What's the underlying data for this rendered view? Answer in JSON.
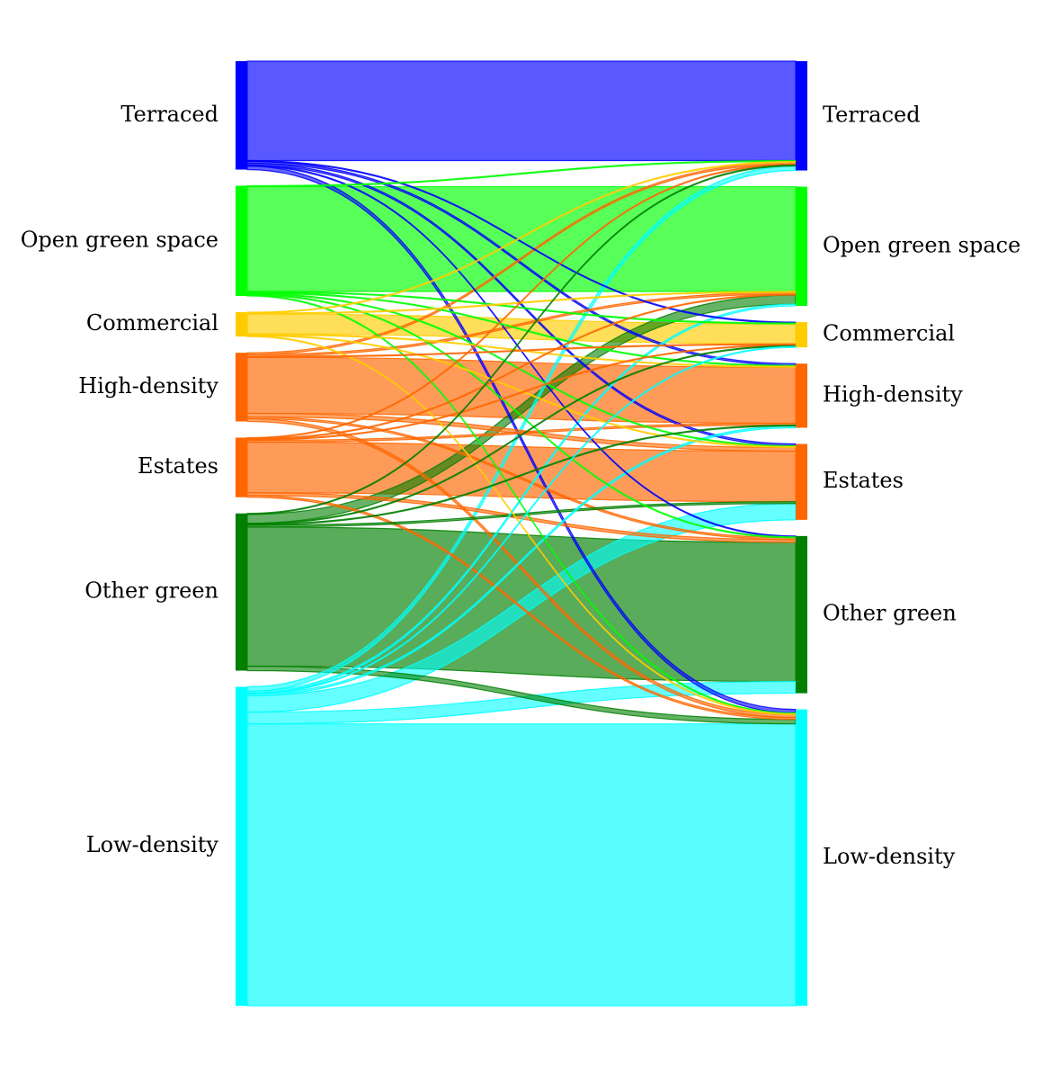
{
  "chart_data": {
    "type": "sankey",
    "categories": [
      "Terraced",
      "Open green space",
      "Commercial",
      "High-density",
      "Estates",
      "Other green",
      "Low-density"
    ],
    "colors": {
      "Terraced": "#0000ff",
      "Open green space": "#00ff00",
      "Commercial": "#ffcc00",
      "High-density": "#ff6600",
      "Estates": "#ff6600",
      "Other green": "#007f00",
      "Low-density": "#00ffff"
    },
    "flows": [
      {
        "from": "Terraced",
        "to": "Terraced",
        "value": 110
      },
      {
        "from": "Terraced",
        "to": "Commercial",
        "value": 1
      },
      {
        "from": "Terraced",
        "to": "High-density",
        "value": 2
      },
      {
        "from": "Terraced",
        "to": "Estates",
        "value": 2
      },
      {
        "from": "Terraced",
        "to": "Other green",
        "value": 1
      },
      {
        "from": "Terraced",
        "to": "Low-density",
        "value": 4
      },
      {
        "from": "Open green space",
        "to": "Terraced",
        "value": 1
      },
      {
        "from": "Open green space",
        "to": "Open green space",
        "value": 116
      },
      {
        "from": "Open green space",
        "to": "Commercial",
        "value": 1
      },
      {
        "from": "Open green space",
        "to": "High-density",
        "value": 1
      },
      {
        "from": "Open green space",
        "to": "Estates",
        "value": 1
      },
      {
        "from": "Open green space",
        "to": "Other green",
        "value": 1
      },
      {
        "from": "Open green space",
        "to": "Low-density",
        "value": 1
      },
      {
        "from": "Commercial",
        "to": "Terraced",
        "value": 1
      },
      {
        "from": "Commercial",
        "to": "Open green space",
        "value": 1
      },
      {
        "from": "Commercial",
        "to": "Commercial",
        "value": 22
      },
      {
        "from": "Commercial",
        "to": "High-density",
        "value": 1
      },
      {
        "from": "Commercial",
        "to": "Estates",
        "value": 1
      },
      {
        "from": "Commercial",
        "to": "Low-density",
        "value": 1
      },
      {
        "from": "High-density",
        "to": "Terraced",
        "value": 2
      },
      {
        "from": "High-density",
        "to": "Open green space",
        "value": 2
      },
      {
        "from": "High-density",
        "to": "Commercial",
        "value": 1
      },
      {
        "from": "High-density",
        "to": "High-density",
        "value": 62
      },
      {
        "from": "High-density",
        "to": "Estates",
        "value": 4
      },
      {
        "from": "High-density",
        "to": "Other green",
        "value": 2
      },
      {
        "from": "High-density",
        "to": "Low-density",
        "value": 3
      },
      {
        "from": "Estates",
        "to": "Terraced",
        "value": 1
      },
      {
        "from": "Estates",
        "to": "Open green space",
        "value": 1
      },
      {
        "from": "Estates",
        "to": "Commercial",
        "value": 1
      },
      {
        "from": "Estates",
        "to": "High-density",
        "value": 2
      },
      {
        "from": "Estates",
        "to": "Estates",
        "value": 56
      },
      {
        "from": "Estates",
        "to": "Other green",
        "value": 3
      },
      {
        "from": "Estates",
        "to": "Low-density",
        "value": 2
      },
      {
        "from": "Other green",
        "to": "Terraced",
        "value": 1
      },
      {
        "from": "Other green",
        "to": "Open green space",
        "value": 10
      },
      {
        "from": "Other green",
        "to": "Commercial",
        "value": 1
      },
      {
        "from": "Other green",
        "to": "High-density",
        "value": 1
      },
      {
        "from": "Other green",
        "to": "Estates",
        "value": 2
      },
      {
        "from": "Other green",
        "to": "Other green",
        "value": 154
      },
      {
        "from": "Other green",
        "to": "Low-density",
        "value": 5
      },
      {
        "from": "Low-density",
        "to": "Terraced",
        "value": 5
      },
      {
        "from": "Low-density",
        "to": "Open green space",
        "value": 2
      },
      {
        "from": "Low-density",
        "to": "Commercial",
        "value": 1
      },
      {
        "from": "Low-density",
        "to": "High-density",
        "value": 2
      },
      {
        "from": "Low-density",
        "to": "Estates",
        "value": 18
      },
      {
        "from": "Low-density",
        "to": "Other green",
        "value": 13
      },
      {
        "from": "Low-density",
        "to": "Low-density",
        "value": 312
      }
    ]
  }
}
